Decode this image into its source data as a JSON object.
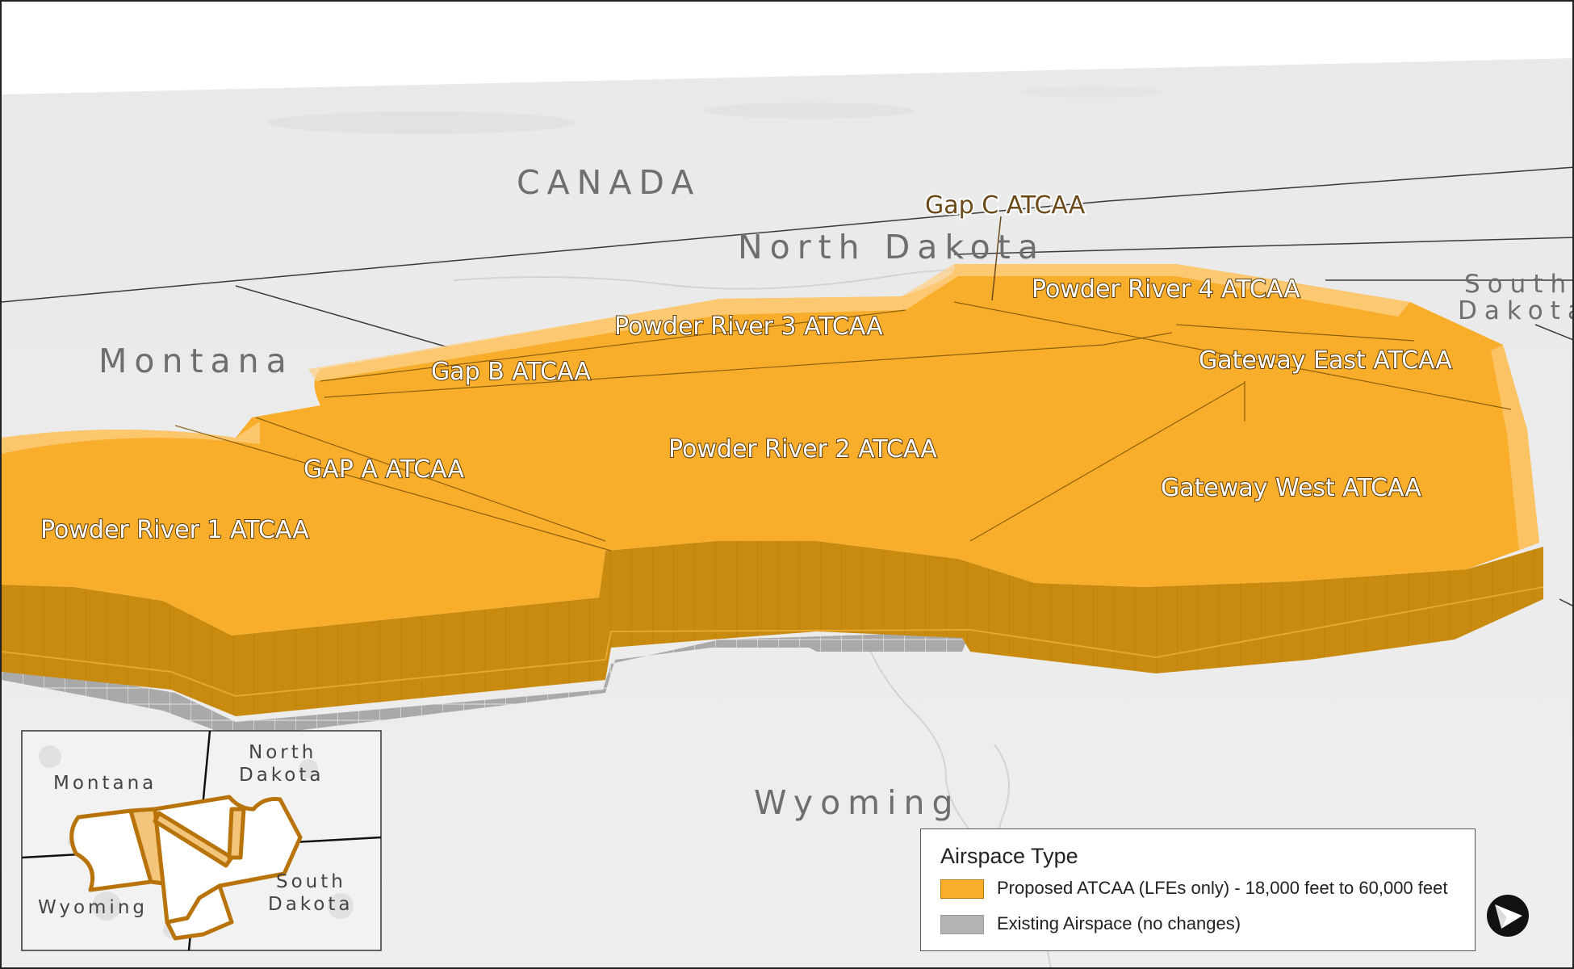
{
  "map": {
    "region_labels": [
      {
        "id": "canada",
        "text": "CANADA"
      },
      {
        "id": "north-dakota",
        "text": "North Dakota"
      },
      {
        "id": "montana",
        "text": "Montana"
      },
      {
        "id": "south-dakota-line1",
        "text": "South"
      },
      {
        "id": "south-dakota-line2",
        "text": "Dakota"
      },
      {
        "id": "wyoming",
        "text": "Wyoming"
      }
    ],
    "airspace_labels": [
      {
        "id": "gap-c",
        "text": "Gap C ATCAA"
      },
      {
        "id": "powder-river-4",
        "text": "Powder River 4 ATCAA"
      },
      {
        "id": "powder-river-3",
        "text": "Powder River 3 ATCAA"
      },
      {
        "id": "gap-b",
        "text": "Gap B ATCAA"
      },
      {
        "id": "gateway-east",
        "text": "Gateway East ATCAA"
      },
      {
        "id": "powder-river-2",
        "text": "Powder River 2 ATCAA"
      },
      {
        "id": "gap-a",
        "text": "GAP A ATCAA"
      },
      {
        "id": "gateway-west",
        "text": "Gateway West ATCAA"
      },
      {
        "id": "powder-river-1",
        "text": "Powder River 1 ATCAA"
      }
    ]
  },
  "inset": {
    "labels": {
      "montana": "Montana",
      "north_dakota_1": "North",
      "north_dakota_2": "Dakota",
      "south_dakota_1": "South",
      "south_dakota_2": "Dakota",
      "wyoming": "Wyoming"
    }
  },
  "legend": {
    "title": "Airspace Type",
    "items": [
      {
        "label": "Proposed ATCAA (LFEs only) - 18,000 feet to 60,000 feet",
        "color": "#F9AE2B"
      },
      {
        "label": "Existing Airspace (no changes)",
        "color": "#B4B4B4"
      }
    ]
  },
  "colors": {
    "atcaa_top": "#F9AE2B",
    "atcaa_side": "#C98A10",
    "existing_airspace": "#B4B4B4",
    "land": "#ECECEC"
  },
  "icons": {
    "north_arrow": "north-arrow-icon"
  }
}
